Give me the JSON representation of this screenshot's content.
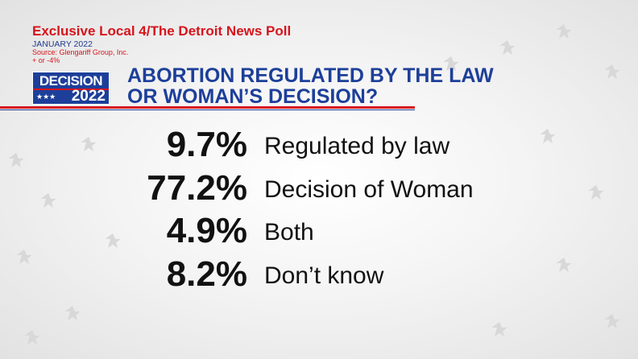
{
  "header": {
    "title": "Exclusive Local 4/The Detroit News Poll",
    "date": "JANUARY 2022",
    "source": "Source: Glengariff Group, Inc.",
    "margin": "+ or -4%"
  },
  "logo": {
    "line1": "DECISION",
    "line2": "2022"
  },
  "question": {
    "line1": "ABORTION REGULATED BY THE LAW",
    "line2": "OR WOMAN’S DECISION?"
  },
  "results": [
    {
      "value": "9.7%",
      "label": "Regulated by law"
    },
    {
      "value": "77.2%",
      "label": "Decision of Woman"
    },
    {
      "value": "4.9%",
      "label": "Both"
    },
    {
      "value": "8.2%",
      "label": "Don’t know"
    }
  ]
}
